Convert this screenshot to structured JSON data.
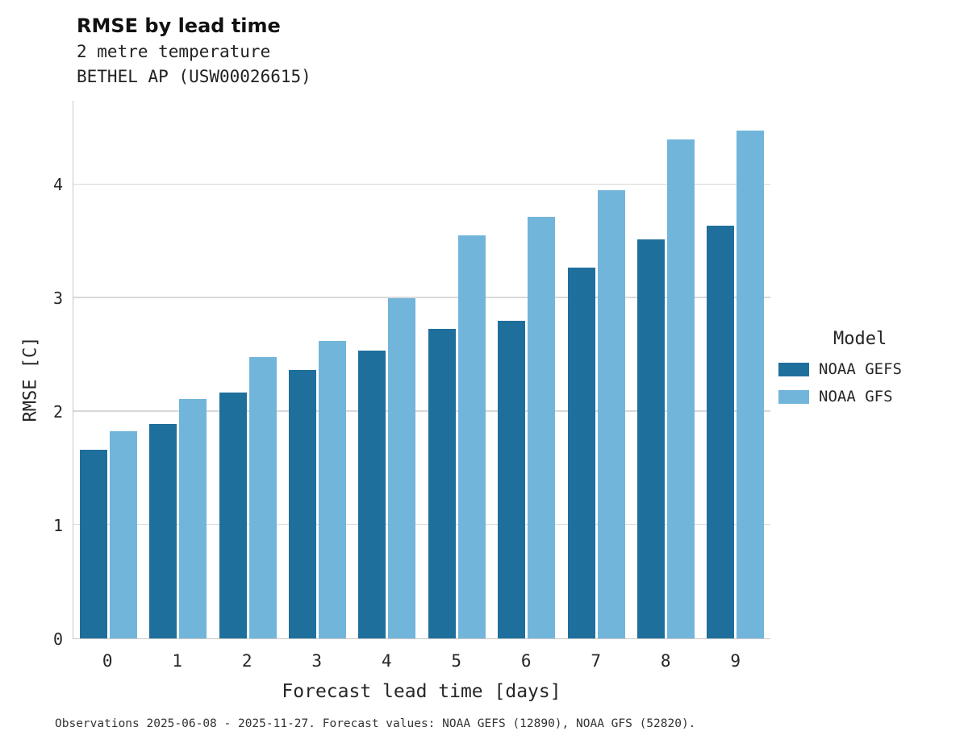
{
  "chart_data": {
    "type": "bar",
    "title": "RMSE by lead time",
    "subtitle1": "2 metre temperature",
    "subtitle2": "BETHEL AP (USW00026615)",
    "xlabel": "Forecast lead time [days]",
    "ylabel": "RMSE [C]",
    "categories": [
      "0",
      "1",
      "2",
      "3",
      "4",
      "5",
      "6",
      "7",
      "8",
      "9"
    ],
    "series": [
      {
        "name": "NOAA GEFS",
        "color": "#1f6f9c",
        "values": [
          1.66,
          1.89,
          2.17,
          2.37,
          2.54,
          2.73,
          2.8,
          3.27,
          3.52,
          3.64
        ]
      },
      {
        "name": "NOAA GFS",
        "color": "#72b5da",
        "values": [
          1.83,
          2.11,
          2.48,
          2.62,
          3.0,
          3.55,
          3.72,
          3.95,
          4.4,
          4.48
        ]
      }
    ],
    "ylim": [
      0,
      4.74
    ],
    "yticks": [
      0,
      1,
      2,
      3,
      4
    ],
    "grid": "horizontal",
    "legend_position": "right"
  },
  "legend": {
    "title": "Model"
  },
  "footer": {
    "text": "Observations 2025-06-08 - 2025-11-27. Forecast values: NOAA GEFS (12890), NOAA GFS (52820)."
  },
  "colors": {
    "gridline": "#d9d9d9",
    "axis": "#c8c8c8",
    "text": "#262626"
  }
}
